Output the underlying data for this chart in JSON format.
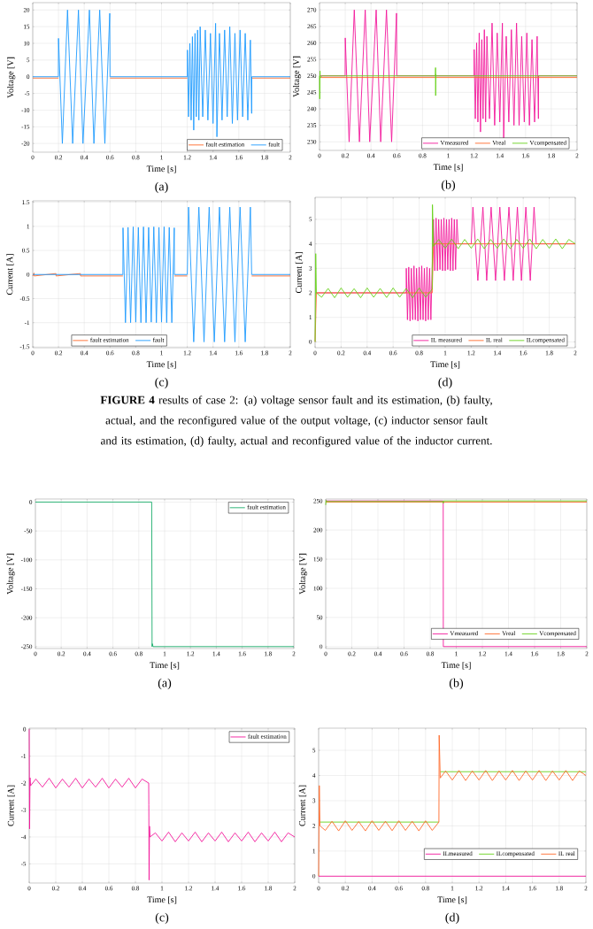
{
  "chart_data": [
    {
      "type": "line",
      "xlabel": "Time [s]",
      "ylabel": "Voltage [V]",
      "xlim": [
        0,
        2
      ],
      "ylim": [
        -22.6,
        22.2
      ],
      "xticks": [
        0,
        0.2,
        0.4,
        0.6,
        0.8,
        1,
        1.2,
        1.4,
        1.6,
        1.8,
        2
      ],
      "yticks": [
        -20,
        -15,
        -10,
        -5,
        0,
        5,
        10,
        15,
        20
      ],
      "grid": true,
      "legend": "bottom right",
      "annotations": [
        "(a)"
      ],
      "series": [
        {
          "name": "fault estimation",
          "color": "#ff6a2a",
          "x": [
            0,
            0.2,
            0.4,
            0.6,
            1.2,
            1.45,
            1.7,
            2
          ],
          "values": [
            -0.4,
            -0.4,
            null,
            -0.4,
            -0.4,
            null,
            -0.4,
            -0.4
          ]
        },
        {
          "name": "fault",
          "color": "#1e9bff",
          "x": [
            0,
            0.199,
            0.2,
            0.23,
            0.27,
            0.31,
            0.355,
            0.39,
            0.44,
            0.475,
            0.52,
            0.56,
            0.598,
            0.6,
            1.2,
            1.201,
            1.21,
            1.22,
            1.23,
            1.24,
            1.25,
            1.26,
            1.27,
            1.28,
            1.29,
            1.3,
            1.32,
            1.34,
            1.36,
            1.38,
            1.4,
            1.42,
            1.43,
            1.45,
            1.47,
            1.49,
            1.51,
            1.53,
            1.55,
            1.57,
            1.59,
            1.61,
            1.63,
            1.65,
            1.67,
            1.69,
            1.7,
            1.701,
            2
          ],
          "values": [
            0,
            0,
            11.5,
            -20,
            20,
            -20,
            20,
            -20,
            20,
            -20,
            20,
            -20,
            19,
            0,
            0,
            8,
            -12,
            10,
            -13,
            12,
            -16,
            13,
            -12,
            14,
            -13,
            15,
            -12,
            14,
            -13,
            13,
            -14,
            16,
            -18,
            13,
            -13,
            14,
            -12,
            15,
            -14,
            13,
            -13,
            14,
            -12,
            13,
            -13,
            11,
            -11,
            0,
            0
          ]
        }
      ]
    },
    {
      "type": "line",
      "xlabel": "Time [s]",
      "ylabel": "Voltage [V]",
      "xlim": [
        0,
        2
      ],
      "ylim": [
        227.4,
        272.2
      ],
      "xticks": [
        0,
        0.2,
        0.4,
        0.6,
        0.8,
        1,
        1.2,
        1.4,
        1.6,
        1.8,
        2
      ],
      "yticks": [
        230,
        235,
        240,
        245,
        250,
        255,
        260,
        265,
        270
      ],
      "grid": true,
      "legend": "bottom right",
      "annotations": [
        "(b)"
      ],
      "series": [
        {
          "name": "Vmeasured",
          "color": "#f3179b",
          "x": [
            0,
            0.199,
            0.2,
            0.23,
            0.27,
            0.31,
            0.355,
            0.39,
            0.44,
            0.475,
            0.52,
            0.56,
            0.598,
            0.6,
            1.2,
            1.201,
            1.21,
            1.22,
            1.23,
            1.24,
            1.25,
            1.26,
            1.27,
            1.28,
            1.29,
            1.3,
            1.32,
            1.34,
            1.36,
            1.38,
            1.4,
            1.42,
            1.43,
            1.45,
            1.47,
            1.49,
            1.51,
            1.53,
            1.55,
            1.57,
            1.59,
            1.61,
            1.63,
            1.65,
            1.67,
            1.69,
            1.7,
            1.701,
            2
          ],
          "values": [
            250,
            250,
            261.5,
            230,
            270,
            230,
            270,
            230,
            270,
            230,
            270,
            230,
            269,
            250,
            250,
            258,
            237,
            260,
            236,
            263,
            233,
            261,
            237,
            264,
            236,
            262,
            237,
            266,
            235,
            263,
            236,
            266,
            231,
            262,
            236,
            264,
            235,
            266,
            235,
            262,
            236,
            263,
            235,
            261,
            236,
            262,
            237,
            250,
            250
          ]
        },
        {
          "name": "Vreal",
          "color": "#ff6a2a",
          "x": [
            0,
            2
          ],
          "values": [
            249.5,
            249.5
          ]
        },
        {
          "name": "Vcompensated",
          "color": "#66d11a",
          "x": [
            0,
            0.002,
            0.004,
            0.006,
            0.02,
            0.9,
            0.901,
            0.902,
            0.903,
            0.905,
            2
          ],
          "values": [
            250,
            243,
            251.5,
            249.5,
            250,
            250,
            252.5,
            244,
            250.5,
            250,
            250
          ]
        }
      ]
    },
    {
      "type": "line",
      "xlabel": "Time [s]",
      "ylabel": "Current [A]",
      "xlim": [
        0,
        2
      ],
      "ylim": [
        -1.52,
        1.53
      ],
      "xticks": [
        0,
        0.2,
        0.4,
        0.6,
        0.8,
        1,
        1.2,
        1.4,
        1.6,
        1.8,
        2
      ],
      "yticks": [
        -1.5,
        -1,
        -0.5,
        0,
        0.5,
        1,
        1.5
      ],
      "grid": true,
      "legend": "bottom left",
      "annotations": [
        "(c)"
      ],
      "series": [
        {
          "name": "fault estimation",
          "color": "#ff6a2a",
          "x": [
            0,
            0.01,
            0.011,
            0.18,
            0.181,
            0.37,
            0.371,
            0.7,
            0.9,
            1.1,
            1.2,
            1.45,
            1.7,
            2
          ],
          "values": [
            -0.03,
            0.03,
            -0.03,
            0.02,
            -0.03,
            0.02,
            -0.03,
            -0.03,
            null,
            -0.03,
            -0.03,
            null,
            -0.03,
            -0.03
          ]
        },
        {
          "name": "fault",
          "color": "#1e9bff",
          "x": [
            0,
            0.7,
            0.701,
            0.72,
            0.74,
            0.76,
            0.78,
            0.8,
            0.82,
            0.84,
            0.86,
            0.88,
            0.9,
            0.92,
            0.94,
            0.96,
            0.98,
            1.0,
            1.02,
            1.04,
            1.06,
            1.08,
            1.099,
            1.1,
            1.2,
            1.21,
            1.25,
            1.29,
            1.33,
            1.37,
            1.41,
            1.45,
            1.49,
            1.53,
            1.57,
            1.61,
            1.65,
            1.69,
            1.7,
            2
          ],
          "values": [
            0,
            0,
            0.97,
            -1,
            0.98,
            -1,
            0.99,
            -0.99,
            0.98,
            -1,
            0.99,
            -1,
            0.98,
            -0.99,
            0.99,
            -1,
            0.98,
            -0.99,
            0.99,
            -1,
            0.98,
            -1,
            0.97,
            0,
            0,
            1.4,
            -1.4,
            1.4,
            -1.4,
            1.4,
            -1.4,
            1.4,
            -1.4,
            1.4,
            -1.4,
            1.4,
            -1.4,
            1.4,
            0,
            0
          ]
        }
      ]
    },
    {
      "type": "line",
      "xlabel": "Time [s]",
      "ylabel": "Current [A]",
      "xlim": [
        0,
        2
      ],
      "ylim": [
        -0.24,
        5.9
      ],
      "xticks": [
        0,
        0.2,
        0.4,
        0.6,
        0.8,
        1,
        1.2,
        1.4,
        1.6,
        1.8,
        2
      ],
      "yticks": [
        0,
        1,
        2,
        3,
        4,
        5
      ],
      "grid": true,
      "legend": "bottom right",
      "annotations": [
        "(d)"
      ],
      "series": [
        {
          "name": "IL measured",
          "color": "#f3179b",
          "x": [
            0.01,
            0.7,
            0.701,
            0.71,
            0.72,
            0.73,
            0.74,
            0.75,
            0.76,
            0.77,
            0.78,
            0.79,
            0.8,
            0.81,
            0.82,
            0.83,
            0.84,
            0.85,
            0.86,
            0.87,
            0.88,
            0.89,
            0.9,
            0.91,
            0.92,
            0.93,
            0.94,
            0.95,
            0.96,
            0.97,
            0.98,
            0.99,
            1.0,
            1.01,
            1.02,
            1.03,
            1.04,
            1.05,
            1.06,
            1.07,
            1.08,
            1.09,
            1.1,
            1.2,
            1.213,
            1.251,
            1.29,
            1.319,
            1.353,
            1.387,
            1.42,
            1.455,
            1.49,
            1.523,
            1.555,
            1.586,
            1.62,
            1.654,
            1.683,
            1.7,
            2
          ],
          "values": [
            2,
            2,
            3.0,
            0.9,
            3.05,
            0.85,
            3.0,
            0.9,
            3.1,
            0.9,
            3.0,
            0.85,
            3.05,
            0.9,
            3.1,
            0.9,
            3.0,
            0.85,
            3.05,
            0.9,
            3.0,
            0.9,
            3.0,
            5.0,
            2.9,
            5.05,
            2.9,
            5.0,
            2.95,
            5.0,
            2.9,
            5.05,
            2.9,
            5.0,
            2.95,
            5.0,
            2.9,
            5.05,
            2.9,
            5.0,
            2.95,
            5.0,
            4,
            4,
            5.5,
            2.5,
            5.5,
            2.5,
            5.5,
            2.5,
            5.5,
            2.5,
            5.5,
            2.5,
            5.5,
            2.5,
            5.5,
            2.5,
            5.5,
            4,
            4
          ]
        },
        {
          "name": "IL real",
          "color": "#ff6a2a",
          "x": [
            0,
            0.01,
            0.9,
            0.91,
            2
          ],
          "values": [
            0,
            2,
            2,
            4,
            4
          ]
        },
        {
          "name": "ILcompensated",
          "color": "#66d11a",
          "x": [
            0,
            0.005,
            0.01,
            0.05,
            0.1,
            0.15,
            0.2,
            0.25,
            0.3,
            0.35,
            0.4,
            0.45,
            0.5,
            0.55,
            0.6,
            0.65,
            0.7,
            0.75,
            0.8,
            0.85,
            0.9,
            0.902,
            0.91,
            0.95,
            1.0,
            1.05,
            1.1,
            1.15,
            1.2,
            1.25,
            1.3,
            1.35,
            1.4,
            1.45,
            1.5,
            1.55,
            1.6,
            1.65,
            1.7,
            1.75,
            1.8,
            1.85,
            1.9,
            1.95,
            2
          ],
          "values": [
            0,
            3.6,
            2,
            1.82,
            2.18,
            1.8,
            2.2,
            1.82,
            2.17,
            1.8,
            2.2,
            1.82,
            2.18,
            1.81,
            2.2,
            1.82,
            2.18,
            1.8,
            2.2,
            1.82,
            2.15,
            5.6,
            3.9,
            4.18,
            3.82,
            4.2,
            3.8,
            4.18,
            3.82,
            4.2,
            3.8,
            4.18,
            3.82,
            4.2,
            3.8,
            4.18,
            3.82,
            4.2,
            3.8,
            4.18,
            3.82,
            4.2,
            3.8,
            4.18,
            4.0
          ]
        }
      ]
    },
    {
      "type": "other",
      "annotations": [
        "**FIGURE 4** results of case 2: (a) voltage sensor fault and its estimation, (b) faulty, actual, and the reconfigured value of the output voltage, (c) inductor sensor fault and its estimation, (d) faulty, actual and reconfigured value of the inductor current."
      ]
    },
    {
      "type": "line",
      "xlabel": "Time [s]",
      "ylabel": "Voltage [V]",
      "xlim": [
        0,
        2
      ],
      "ylim": [
        -253.3,
        5.3
      ],
      "xticks": [
        0,
        0.2,
        0.4,
        0.6,
        0.8,
        1,
        1.2,
        1.4,
        1.6,
        1.8,
        2
      ],
      "yticks": [
        -250,
        -200,
        -150,
        -100,
        -50,
        0
      ],
      "grid": true,
      "legend": "top right",
      "annotations": [
        "(a)"
      ],
      "series": [
        {
          "name": "fault estimation",
          "color": "#1aad6b",
          "x": [
            0,
            0.9,
            0.903,
            0.905,
            0.91,
            2
          ],
          "values": [
            0,
            0,
            -250,
            -245,
            -250,
            -250
          ]
        }
      ]
    },
    {
      "type": "line",
      "xlabel": "Time [s]",
      "ylabel": "Voltage [V]",
      "xlim": [
        0,
        2
      ],
      "ylim": [
        -3.3,
        253.3
      ],
      "xticks": [
        0,
        0.2,
        0.4,
        0.6,
        0.8,
        1,
        1.2,
        1.4,
        1.6,
        1.8,
        2
      ],
      "yticks": [
        0,
        50,
        100,
        150,
        200,
        250
      ],
      "grid": true,
      "legend": "bottom right",
      "annotations": [
        "(b)"
      ],
      "series": [
        {
          "name": "Vmeasured",
          "color": "#f3179b",
          "x": [
            0,
            0.9,
            0.901,
            2
          ],
          "values": [
            250,
            250,
            0,
            0
          ]
        },
        {
          "name": "Vreal",
          "color": "#ff6a2a",
          "x": [
            0,
            2
          ],
          "values": [
            248,
            248
          ]
        },
        {
          "name": "Vcompensated",
          "color": "#66d11a",
          "x": [
            0,
            0.003,
            0.006,
            0.9,
            0.901,
            0.903,
            2
          ],
          "values": [
            243,
            251,
            249,
            249,
            246,
            250,
            250
          ]
        }
      ]
    },
    {
      "type": "line",
      "xlabel": "Time [s]",
      "ylabel": "Current [A]",
      "xlim": [
        0,
        2
      ],
      "ylim": [
        -5.71,
        0.04
      ],
      "xticks": [
        0,
        0.2,
        0.4,
        0.6,
        0.8,
        1,
        1.2,
        1.4,
        1.6,
        1.8,
        2
      ],
      "yticks": [
        -5,
        -4,
        -3,
        -2,
        -1,
        0
      ],
      "grid": true,
      "legend": "top right",
      "annotations": [
        "(c)"
      ],
      "series": [
        {
          "name": "fault estimation",
          "color": "#f3179b",
          "x": [
            0,
            0.003,
            0.006,
            0.01,
            0.05,
            0.1,
            0.15,
            0.2,
            0.25,
            0.3,
            0.35,
            0.4,
            0.45,
            0.5,
            0.55,
            0.6,
            0.65,
            0.7,
            0.75,
            0.8,
            0.85,
            0.9,
            0.901,
            0.903,
            0.906,
            0.91,
            0.95,
            1.0,
            1.05,
            1.1,
            1.15,
            1.2,
            1.25,
            1.3,
            1.35,
            1.4,
            1.45,
            1.5,
            1.55,
            1.6,
            1.65,
            1.7,
            1.75,
            1.8,
            1.85,
            1.9,
            1.95,
            2
          ],
          "values": [
            0,
            -3.7,
            -1.8,
            -2.1,
            -1.85,
            -2.15,
            -1.82,
            -2.18,
            -1.85,
            -2.15,
            -1.82,
            -2.18,
            -1.85,
            -2.15,
            -1.82,
            -2.18,
            -1.85,
            -2.15,
            -1.82,
            -2.18,
            -1.85,
            -2.0,
            -2.8,
            -5.6,
            -3.6,
            -4.0,
            -3.85,
            -4.15,
            -3.82,
            -4.18,
            -3.85,
            -4.15,
            -3.82,
            -4.18,
            -3.85,
            -4.15,
            -3.82,
            -4.18,
            -3.85,
            -4.15,
            -3.82,
            -4.18,
            -3.85,
            -4.15,
            -3.82,
            -4.18,
            -3.85,
            -4.0
          ]
        }
      ]
    },
    {
      "type": "line",
      "xlabel": "Time [s]",
      "ylabel": "Current [A]",
      "xlim": [
        0,
        2
      ],
      "ylim": [
        -0.27,
        5.88
      ],
      "xticks": [
        0,
        0.2,
        0.4,
        0.6,
        0.8,
        1,
        1.2,
        1.4,
        1.6,
        1.8,
        2
      ],
      "yticks": [
        0,
        1,
        2,
        3,
        4,
        5
      ],
      "grid": true,
      "legend": "right",
      "annotations": [
        "(d)"
      ],
      "series": [
        {
          "name": "ILmeasured",
          "color": "#f3179b",
          "x": [
            0,
            2
          ],
          "values": [
            0,
            0
          ]
        },
        {
          "name": "ILcompensated",
          "color": "#66d11a",
          "x": [
            0.01,
            0.9,
            0.902,
            0.91,
            2
          ],
          "values": [
            2.15,
            2.15,
            null,
            4.15,
            4.15
          ]
        },
        {
          "name": "IL real",
          "color": "#ff6a2a",
          "x": [
            0,
            0.005,
            0.01,
            0.05,
            0.1,
            0.15,
            0.2,
            0.25,
            0.3,
            0.35,
            0.4,
            0.45,
            0.5,
            0.55,
            0.6,
            0.65,
            0.7,
            0.75,
            0.8,
            0.85,
            0.9,
            0.902,
            0.91,
            0.95,
            1.0,
            1.05,
            1.1,
            1.15,
            1.2,
            1.25,
            1.3,
            1.35,
            1.4,
            1.45,
            1.5,
            1.55,
            1.6,
            1.65,
            1.7,
            1.75,
            1.8,
            1.85,
            1.9,
            1.95,
            2
          ],
          "values": [
            0,
            3.6,
            2,
            1.82,
            2.18,
            1.8,
            2.2,
            1.82,
            2.17,
            1.8,
            2.2,
            1.82,
            2.18,
            1.81,
            2.2,
            1.82,
            2.18,
            1.8,
            2.2,
            1.82,
            2.15,
            5.6,
            3.9,
            4.18,
            3.82,
            4.2,
            3.8,
            4.18,
            3.82,
            4.2,
            3.8,
            4.18,
            3.82,
            4.2,
            3.8,
            4.18,
            3.82,
            4.2,
            3.8,
            4.18,
            3.82,
            4.2,
            3.8,
            4.18,
            4.0
          ]
        }
      ]
    }
  ]
}
